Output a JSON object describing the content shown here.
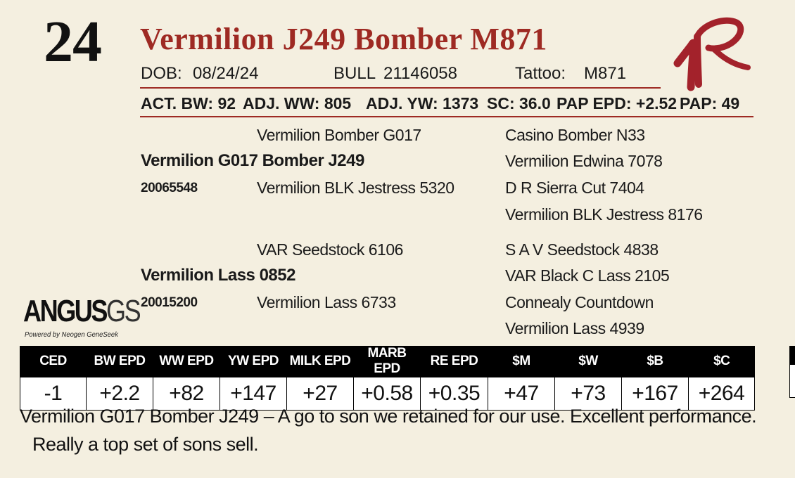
{
  "lot_number": "24",
  "animal_name": "Vermilion J249 Bomber M871",
  "brand_logo": "VR",
  "header": {
    "dob_label": "DOB:",
    "dob_value": "08/24/24",
    "sex": "BULL",
    "registration": "21146058",
    "tattoo_label": "Tattoo:",
    "tattoo_value": "M871"
  },
  "performance": {
    "act_bw": "ACT. BW: 92",
    "adj_ww": "ADJ. WW: 805",
    "adj_yw": "ADJ. YW: 1373",
    "sc": "SC: 36.0",
    "pap_epd": "PAP EPD: +2.52",
    "pap": "PAP: 49"
  },
  "pedigree": {
    "sire": {
      "name": "Vermilion G017 Bomber J249",
      "reg": "20065548"
    },
    "sire_sire": "Vermilion Bomber G017",
    "sire_dam": "Vermilion BLK Jestress 5320",
    "sire_sire_sire": "Casino Bomber N33",
    "sire_sire_dam": "Vermilion Edwina 7078",
    "sire_dam_sire": "D R Sierra Cut 7404",
    "sire_dam_dam": "Vermilion BLK Jestress 8176",
    "dam": {
      "name": "Vermilion Lass 0852",
      "reg": "20015200"
    },
    "dam_sire": "VAR Seedstock 6106",
    "dam_dam": "Vermilion Lass 6733",
    "dam_sire_sire": "S A V Seedstock 4838",
    "dam_sire_dam": "VAR Black C Lass 2105",
    "dam_dam_sire": "Connealy Countdown",
    "dam_dam_dam": "Vermilion Lass 4939"
  },
  "angus_logo": {
    "word": "ANGUS",
    "suffix": "GS",
    "tagline": "Powered by Neogen GeneSeek"
  },
  "epds": {
    "headers": [
      "CED",
      "BW EPD",
      "WW EPD",
      "YW EPD",
      "MILK EPD",
      "MARB EPD",
      "RE EPD",
      "$M",
      "$W",
      "$B",
      "$C"
    ],
    "values": [
      "-1",
      "+2.2",
      "+82",
      "+147",
      "+27",
      "+0.58",
      "+0.35",
      "+47",
      "+73",
      "+167",
      "+264"
    ]
  },
  "description": {
    "line1": "Vermilion G017 Bomber J249 – A go to son we retained for our use.  Excellent performance.",
    "line2": "Really a top set of sons sell."
  }
}
